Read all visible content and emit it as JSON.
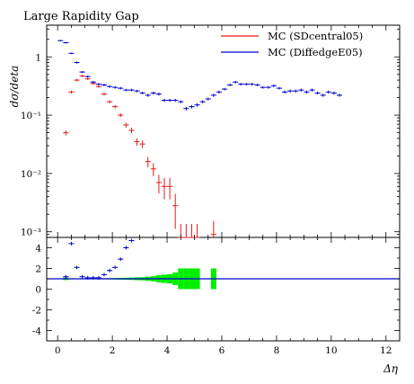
{
  "chart_data": {
    "type": "scatter",
    "title": "Large Rapidity Gap",
    "xlabel": "Δη",
    "ylabel": "dσ/deta",
    "xlim": [
      -0.4,
      12.5
    ],
    "ylim": [
      0.0008,
      3.5
    ],
    "yscale": "log",
    "xticks": [
      "0",
      "2",
      "4",
      "6",
      "8",
      "10",
      "12"
    ],
    "yticks": [
      "10⁻³",
      "10⁻²",
      "10⁻¹",
      "1"
    ],
    "legend_position": "top-right",
    "series": [
      {
        "name": "MC (SDcentral05)",
        "color": "#e41a1c",
        "x": [
          0.3,
          0.5,
          0.7,
          0.9,
          1.1,
          1.3,
          1.5,
          1.7,
          1.9,
          2.1,
          2.3,
          2.5,
          2.7,
          2.9,
          3.1,
          3.3,
          3.5,
          3.7,
          3.9,
          4.1,
          4.3,
          4.5,
          4.7,
          4.9,
          5.1,
          5.7
        ],
        "y": [
          0.05,
          0.25,
          0.4,
          0.47,
          0.42,
          0.35,
          0.31,
          0.23,
          0.17,
          0.14,
          0.1,
          0.068,
          0.055,
          0.035,
          0.032,
          0.016,
          0.012,
          0.007,
          0.006,
          0.006,
          0.0028,
          0.0008,
          0.0008,
          0.0008,
          0.0008,
          0.0009
        ],
        "yerr_rel": [
          0.1,
          0.06,
          0.05,
          0.05,
          0.05,
          0.05,
          0.05,
          0.06,
          0.06,
          0.07,
          0.08,
          0.1,
          0.11,
          0.14,
          0.15,
          0.2,
          0.25,
          0.35,
          0.4,
          0.4,
          0.6,
          0.7,
          0.7,
          0.7,
          0.7,
          0.7
        ]
      },
      {
        "name": "MC (DiffedgeE05)",
        "color": "#0000cc",
        "x": [
          0.1,
          0.3,
          0.5,
          0.7,
          0.9,
          1.1,
          1.3,
          1.5,
          1.7,
          1.9,
          2.1,
          2.3,
          2.5,
          2.7,
          2.9,
          3.1,
          3.3,
          3.5,
          3.7,
          3.9,
          4.1,
          4.3,
          4.5,
          4.7,
          4.9,
          5.1,
          5.3,
          5.5,
          5.7,
          5.9,
          6.1,
          6.3,
          6.5,
          6.7,
          6.9,
          7.1,
          7.3,
          7.5,
          7.7,
          7.9,
          8.1,
          8.3,
          8.5,
          8.7,
          8.9,
          9.1,
          9.3,
          9.5,
          9.7,
          9.9,
          10.1,
          10.3
        ],
        "y": [
          1.9,
          1.75,
          1.15,
          0.8,
          0.55,
          0.46,
          0.37,
          0.34,
          0.33,
          0.31,
          0.3,
          0.29,
          0.27,
          0.27,
          0.26,
          0.24,
          0.22,
          0.24,
          0.23,
          0.18,
          0.18,
          0.18,
          0.17,
          0.13,
          0.14,
          0.15,
          0.17,
          0.19,
          0.22,
          0.25,
          0.28,
          0.33,
          0.37,
          0.34,
          0.34,
          0.34,
          0.33,
          0.3,
          0.3,
          0.32,
          0.29,
          0.25,
          0.26,
          0.26,
          0.27,
          0.25,
          0.27,
          0.24,
          0.22,
          0.25,
          0.24,
          0.22
        ],
        "yerr_rel": [
          0.03,
          0.03,
          0.03,
          0.04,
          0.04,
          0.04,
          0.05,
          0.05,
          0.05,
          0.05,
          0.05,
          0.05,
          0.05,
          0.05,
          0.05,
          0.05,
          0.06,
          0.06,
          0.06,
          0.06,
          0.06,
          0.06,
          0.06,
          0.07,
          0.07,
          0.07,
          0.06,
          0.06,
          0.06,
          0.06,
          0.05,
          0.05,
          0.05,
          0.05,
          0.05,
          0.05,
          0.05,
          0.05,
          0.05,
          0.05,
          0.05,
          0.06,
          0.06,
          0.06,
          0.06,
          0.06,
          0.06,
          0.06,
          0.06,
          0.06,
          0.06,
          0.06
        ]
      }
    ],
    "ratio_panel": {
      "ylim": [
        -5,
        5
      ],
      "yticks": [
        "-4",
        "-2",
        "0",
        "2",
        "4"
      ],
      "reference_line_y": 1,
      "reference_color": "#0000cc",
      "band_color": "#00ee00",
      "band": {
        "x": [
          0.3,
          0.5,
          0.7,
          0.9,
          1.1,
          1.3,
          1.5,
          1.7,
          1.9,
          2.1,
          2.3,
          2.5,
          2.7,
          2.9,
          3.1,
          3.3,
          3.5,
          3.7,
          3.9,
          4.1,
          4.3,
          4.5,
          4.7,
          4.9,
          5.1,
          5.7
        ],
        "half_height": [
          0.12,
          0.05,
          0.04,
          0.04,
          0.04,
          0.04,
          0.05,
          0.05,
          0.06,
          0.07,
          0.08,
          0.1,
          0.11,
          0.14,
          0.15,
          0.2,
          0.25,
          0.35,
          0.4,
          0.45,
          0.6,
          1.0,
          1.0,
          1.0,
          1.0,
          1.0
        ]
      },
      "points": {
        "x": [
          0.3,
          0.5,
          0.7,
          0.9,
          1.1,
          1.3,
          1.5,
          1.7,
          1.9,
          2.1,
          2.3,
          2.5,
          2.7
        ],
        "y": [
          1.2,
          4.4,
          2.1,
          1.2,
          1.1,
          1.1,
          1.1,
          1.4,
          1.8,
          2.1,
          2.9,
          4.0,
          4.7
        ]
      }
    }
  }
}
